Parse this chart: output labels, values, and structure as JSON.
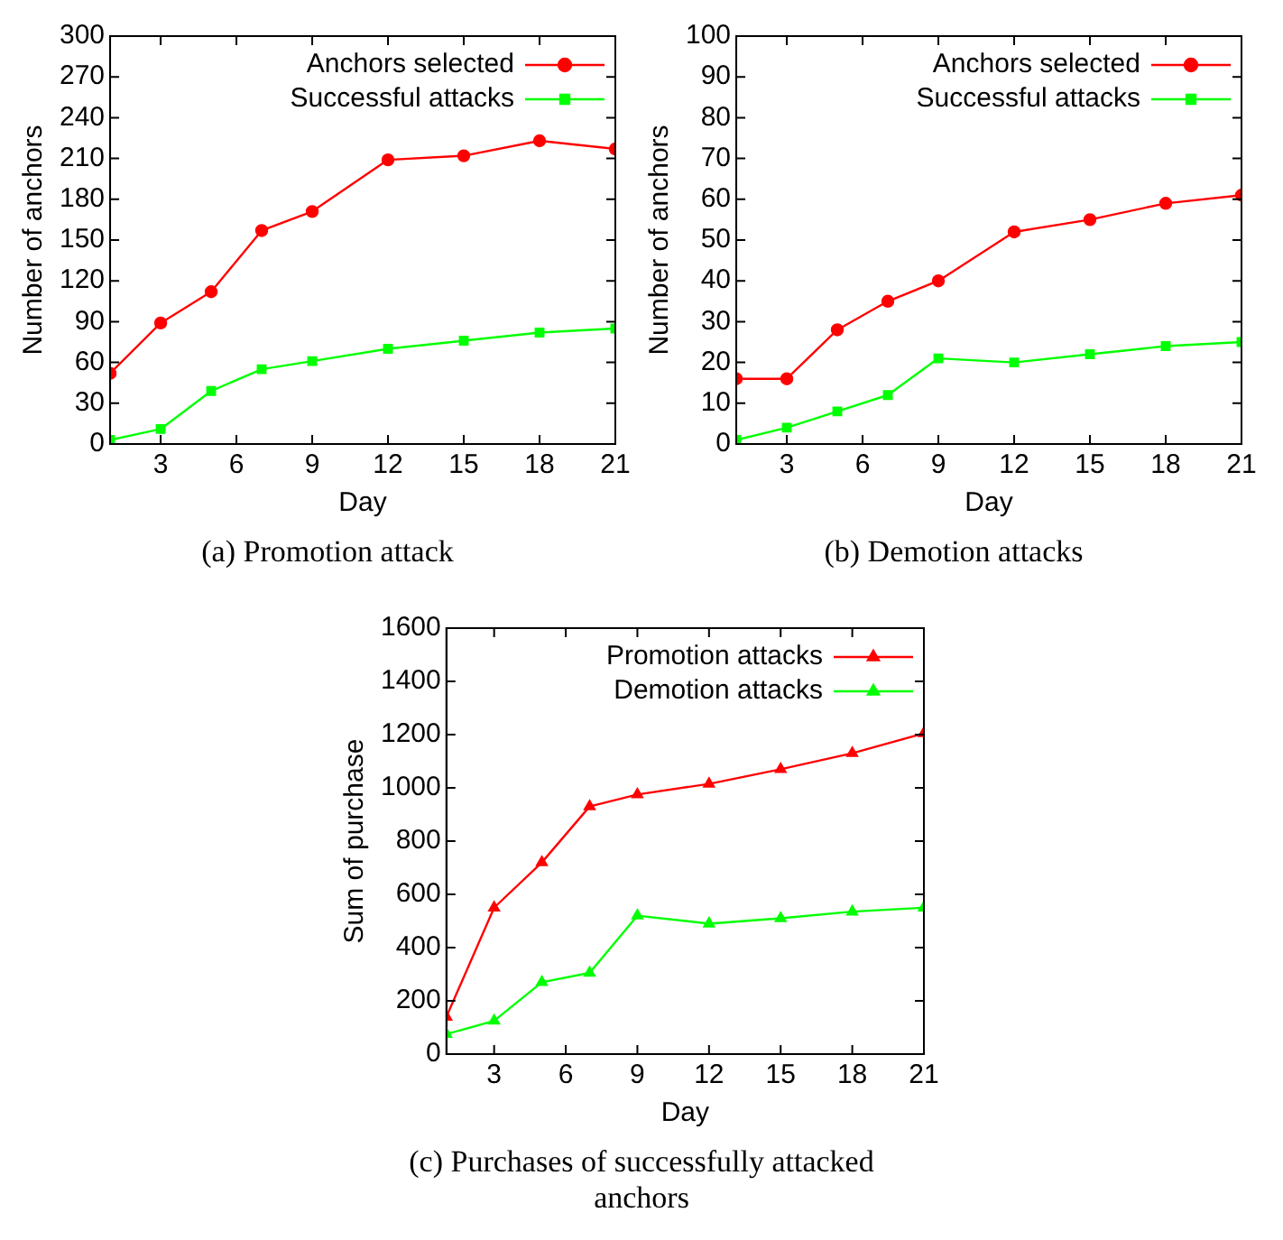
{
  "chart_data": [
    {
      "type": "line",
      "xlabel": "Day",
      "ylabel": "Number of anchors",
      "annotations": [
        "(a) Promotion attack"
      ],
      "x": [
        1,
        3,
        5,
        7,
        9,
        12,
        15,
        18,
        21
      ],
      "xlim": [
        1,
        21
      ],
      "xticks": [
        3,
        6,
        9,
        12,
        15,
        18,
        21
      ],
      "ylim": [
        0,
        300
      ],
      "yticks": [
        0,
        30,
        60,
        90,
        120,
        150,
        180,
        210,
        240,
        270,
        300
      ],
      "grid": false,
      "legend": "top right",
      "series": [
        {
          "name": "Anchors selected",
          "color": "#ff0000",
          "marker": "circle",
          "values": [
            52,
            89,
            112,
            157,
            171,
            209,
            212,
            223,
            217
          ]
        },
        {
          "name": "Successful attacks",
          "color": "#00ff00",
          "marker": "square",
          "values": [
            3,
            11,
            39,
            55,
            61,
            70,
            76,
            82,
            85
          ]
        }
      ]
    },
    {
      "type": "line",
      "xlabel": "Day",
      "ylabel": "Number of anchors",
      "annotations": [
        "(b) Demotion attacks"
      ],
      "x": [
        1,
        3,
        5,
        7,
        9,
        12,
        15,
        18,
        21
      ],
      "xlim": [
        1,
        21
      ],
      "xticks": [
        3,
        6,
        9,
        12,
        15,
        18,
        21
      ],
      "ylim": [
        0,
        100
      ],
      "yticks": [
        0,
        10,
        20,
        30,
        40,
        50,
        60,
        70,
        80,
        90,
        100
      ],
      "grid": false,
      "legend": "top right",
      "series": [
        {
          "name": "Anchors selected",
          "color": "#ff0000",
          "marker": "circle",
          "values": [
            16,
            16,
            28,
            35,
            40,
            52,
            55,
            59,
            61
          ]
        },
        {
          "name": "Successful attacks",
          "color": "#00ff00",
          "marker": "square",
          "values": [
            1,
            4,
            8,
            12,
            21,
            20,
            22,
            24,
            25
          ]
        }
      ]
    },
    {
      "type": "line",
      "xlabel": "Day",
      "ylabel": "Sum of purchase",
      "annotations": [
        "(c) Purchases of successfully attacked anchors"
      ],
      "x": [
        1,
        3,
        5,
        7,
        9,
        12,
        15,
        18,
        21
      ],
      "xlim": [
        1,
        21
      ],
      "xticks": [
        3,
        6,
        9,
        12,
        15,
        18,
        21
      ],
      "ylim": [
        0,
        1600
      ],
      "yticks": [
        0,
        200,
        400,
        600,
        800,
        1000,
        1200,
        1400,
        1600
      ],
      "grid": false,
      "legend": "top right",
      "series": [
        {
          "name": "Promotion attacks",
          "color": "#ff0000",
          "marker": "triangle",
          "values": [
            140,
            550,
            720,
            930,
            975,
            1015,
            1070,
            1130,
            1205
          ]
        },
        {
          "name": "Demotion attacks",
          "color": "#00ff00",
          "marker": "triangle",
          "values": [
            75,
            125,
            270,
            305,
            520,
            490,
            510,
            535,
            550
          ]
        }
      ]
    }
  ]
}
